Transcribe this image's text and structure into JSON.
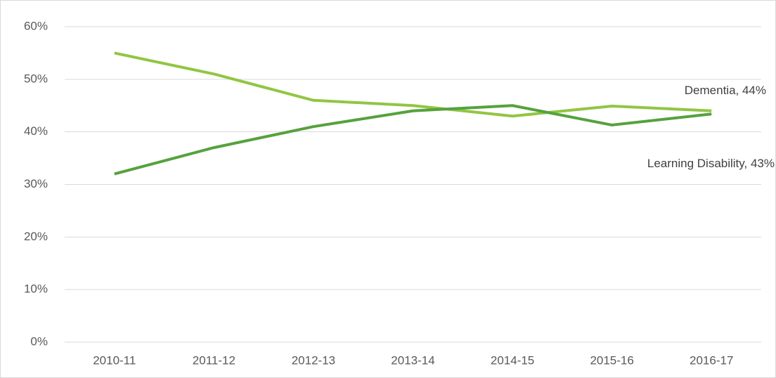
{
  "chart_data": {
    "type": "line",
    "categories": [
      "2010-11",
      "2011-12",
      "2012-13",
      "2013-14",
      "2014-15",
      "2015-16",
      "2016-17"
    ],
    "series": [
      {
        "name": "Dementia",
        "color": "#92c544",
        "values": [
          55,
          51,
          46,
          45,
          43,
          44.9,
          44
        ],
        "value_labels": [
          null,
          null,
          null,
          null,
          null,
          null,
          "Dementia, 44%"
        ]
      },
      {
        "name": "Learning Disability",
        "color": "#55a23c",
        "values": [
          32,
          37,
          41,
          44,
          45,
          41.3,
          43.4
        ],
        "value_labels": [
          null,
          null,
          null,
          null,
          null,
          null,
          "Learning Disability, 43%"
        ]
      }
    ],
    "ylim": [
      0,
      60
    ],
    "yticks": [
      {
        "value": 0,
        "label": "0%"
      },
      {
        "value": 10,
        "label": "10%"
      },
      {
        "value": 20,
        "label": "20%"
      },
      {
        "value": 30,
        "label": "30%"
      },
      {
        "value": 40,
        "label": "40%"
      },
      {
        "value": 50,
        "label": "50%"
      },
      {
        "value": 60,
        "label": "60%"
      }
    ],
    "grid": true
  }
}
